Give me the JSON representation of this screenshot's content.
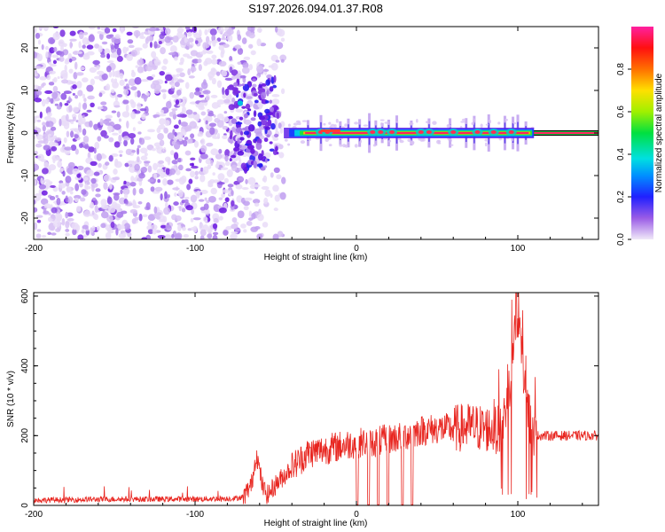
{
  "title": "S197.2026.094.01.37.R08",
  "colorbar": {
    "label": "Normalized spectral amplitude",
    "ticks": [
      "0.0",
      "0.2",
      "0.4",
      "0.6",
      "0.8"
    ],
    "tick_values": [
      0.0,
      0.2,
      0.4,
      0.6,
      0.8
    ],
    "range": [
      0,
      1
    ]
  },
  "colors": {
    "snr_line": "#e8251f",
    "spectrogram_noise": "#7a2ee0",
    "ridge_core": "#ff2060"
  },
  "chart_data": [
    {
      "type": "heatmap",
      "xlabel": "Height of straight line (km)",
      "ylabel": "Frequency (Hz)",
      "xlim": [
        -200,
        150
      ],
      "ylim": [
        -25,
        25
      ],
      "xticks": [
        "-200",
        "-100",
        "0",
        "100"
      ],
      "xtick_values": [
        -200,
        -100,
        0,
        100
      ],
      "yticks": [
        "-20",
        "-10",
        "0",
        "10",
        "20"
      ],
      "ytick_values": [
        -20,
        -10,
        0,
        10,
        20
      ],
      "description_values": {
        "noise_region_x": [
          -200,
          -45
        ],
        "signal_ridge_frequency_hz": 0,
        "signal_ridge_x": [
          -45,
          150
        ]
      }
    },
    {
      "type": "line",
      "xlabel": "Height of straight line (km)",
      "ylabel": "SNR (10 * v/v)",
      "xlim": [
        -200,
        150
      ],
      "ylim": [
        0,
        610
      ],
      "xticks": [
        "-200",
        "-100",
        "0",
        "100"
      ],
      "xtick_values": [
        -200,
        -100,
        0,
        100
      ],
      "yticks": [
        "0",
        "200",
        "400",
        "600"
      ],
      "ytick_values": [
        0,
        200,
        400,
        600
      ],
      "series": [
        {
          "name": "SNR",
          "x": [
            -200,
            -150,
            -100,
            -75,
            -70,
            -65,
            -62,
            -58,
            -55,
            -50,
            -40,
            -30,
            -20,
            -10,
            0,
            10,
            20,
            30,
            40,
            50,
            60,
            70,
            80,
            90,
            95,
            100,
            105,
            110,
            120,
            130,
            140,
            150
          ],
          "values": [
            15,
            18,
            18,
            20,
            25,
            60,
            150,
            50,
            30,
            60,
            110,
            150,
            160,
            170,
            180,
            180,
            190,
            200,
            215,
            220,
            220,
            225,
            220,
            215,
            350,
            600,
            300,
            200,
            200,
            200,
            200,
            200
          ]
        }
      ]
    }
  ]
}
